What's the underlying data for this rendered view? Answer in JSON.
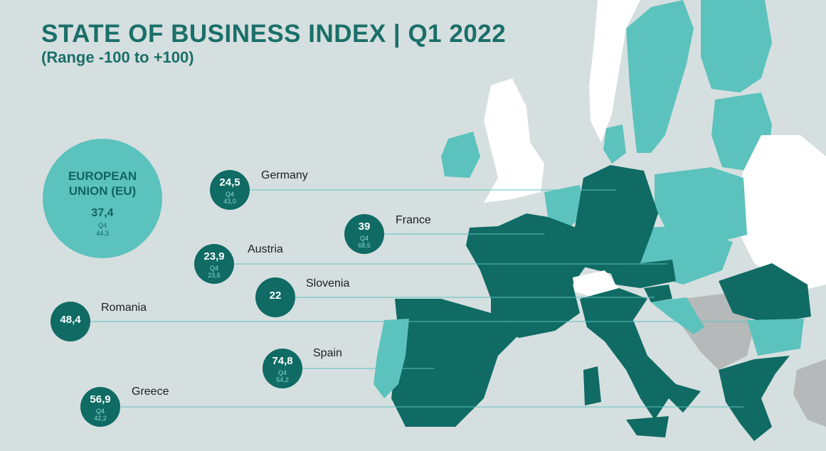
{
  "title": "STATE OF BUSINESS INDEX  |  Q1 2022",
  "subtitle": "(Range -100 to +100)",
  "eu": {
    "label_line1": "EUROPEAN",
    "label_line2": "UNION (EU)",
    "value": "37,4",
    "prev_label": "Q4",
    "prev_value": "44,3"
  },
  "countries": [
    {
      "name": "Germany",
      "value": "24,5",
      "prev_label": "Q4",
      "prev_value": "43,0"
    },
    {
      "name": "France",
      "value": "39",
      "prev_label": "Q4",
      "prev_value": "68,5"
    },
    {
      "name": "Austria",
      "value": "23,9",
      "prev_label": "Q4",
      "prev_value": "23,6"
    },
    {
      "name": "Slovenia",
      "value": "22"
    },
    {
      "name": "Romania",
      "value": "48,4"
    },
    {
      "name": "Spain",
      "value": "74,8",
      "prev_label": "Q4",
      "prev_value": "54,2"
    },
    {
      "name": "Greece",
      "value": "56,9",
      "prev_label": "Q4",
      "prev_value": "42,2"
    }
  ],
  "colors": {
    "background": "#d6dfdf",
    "highlight": "#0f6b64",
    "eu_member": "#5cc2bd",
    "non_eu": "#ffffff",
    "other": "#b5b9b9",
    "title": "#1a6f6a"
  }
}
